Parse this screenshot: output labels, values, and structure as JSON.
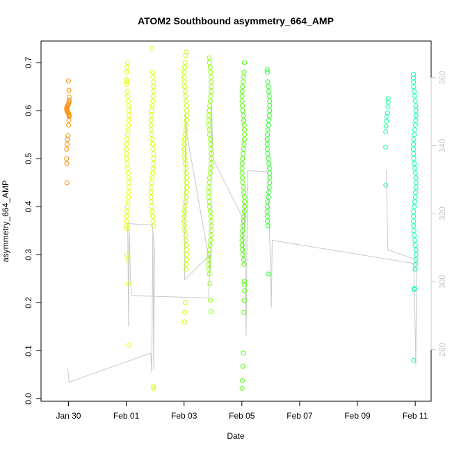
{
  "chart_data": {
    "type": "scatter",
    "title": "ATOM2 Southbound asymmetry_664_AMP",
    "xlabel": "Date",
    "ylabel": "asymmetry_664_AMP",
    "x_unit": "days",
    "x_ticks": [
      {
        "day": 30,
        "label": "Jan 30"
      },
      {
        "day": 32,
        "label": "Feb 01"
      },
      {
        "day": 34,
        "label": "Feb 03"
      },
      {
        "day": 36,
        "label": "Feb 05"
      },
      {
        "day": 38,
        "label": "Feb 07"
      },
      {
        "day": 40,
        "label": "Feb 09"
      },
      {
        "day": 42,
        "label": "Feb 11"
      }
    ],
    "xlim": [
      29.05,
      42.55
    ],
    "ylim": [
      -0.005,
      0.745
    ],
    "y_ticks": [
      0.0,
      0.1,
      0.2,
      0.3,
      0.4,
      0.5,
      0.6,
      0.7
    ],
    "y_tick_labels": [
      "0.0",
      "0.1",
      "0.2",
      "0.3",
      "0.4",
      "0.5",
      "0.6",
      "0.7"
    ],
    "y2_ticks": [
      280,
      300,
      320,
      340,
      360
    ],
    "y2_tick_labels": [
      "280",
      "300",
      "320",
      "340",
      "360"
    ],
    "y2lim": [
      264.8,
      370.8
    ],
    "y2_color": "#c8c8c8",
    "point_style": "open-circle",
    "grid": false,
    "legend": "none",
    "clusters": [
      {
        "x": 29.98,
        "color": "#ff8c00",
        "values": [
          0.662,
          0.642,
          0.628,
          0.622,
          0.618,
          0.615,
          0.612,
          0.61,
          0.608,
          0.606,
          0.604,
          0.602,
          0.6,
          0.598,
          0.596,
          0.594,
          0.592,
          0.59,
          0.588,
          0.58,
          0.57,
          0.548,
          0.54,
          0.53,
          0.52,
          0.5,
          0.49,
          0.45
        ]
      },
      {
        "x": 32.05,
        "color": "#e8ff00",
        "values": [
          0.7,
          0.69,
          0.68,
          0.665,
          0.66,
          0.655,
          0.64,
          0.63,
          0.62,
          0.61,
          0.6,
          0.59,
          0.58,
          0.57,
          0.56,
          0.55,
          0.54,
          0.53,
          0.52,
          0.51,
          0.5,
          0.49,
          0.48,
          0.47,
          0.46,
          0.45,
          0.44,
          0.43,
          0.42,
          0.41,
          0.4,
          0.39,
          0.38,
          0.37,
          0.36,
          0.355,
          0.3,
          0.29,
          0.24,
          0.112
        ]
      },
      {
        "x": 32.9,
        "color": "#d9ff00",
        "values": [
          0.73,
          0.68,
          0.67,
          0.66,
          0.65,
          0.64,
          0.63,
          0.62,
          0.61,
          0.6,
          0.59,
          0.58,
          0.57,
          0.56,
          0.55,
          0.54,
          0.53,
          0.52,
          0.51,
          0.5,
          0.49,
          0.48,
          0.47,
          0.46,
          0.45,
          0.44,
          0.43,
          0.42,
          0.41,
          0.4,
          0.39,
          0.38,
          0.37,
          0.36,
          0.022,
          0.026
        ]
      },
      {
        "x": 34.05,
        "color": "#c4ff00",
        "values": [
          0.722,
          0.715,
          0.7,
          0.69,
          0.68,
          0.67,
          0.66,
          0.65,
          0.64,
          0.63,
          0.62,
          0.61,
          0.6,
          0.59,
          0.58,
          0.57,
          0.56,
          0.55,
          0.54,
          0.53,
          0.52,
          0.51,
          0.5,
          0.49,
          0.48,
          0.47,
          0.46,
          0.45,
          0.44,
          0.43,
          0.42,
          0.41,
          0.4,
          0.39,
          0.38,
          0.37,
          0.36,
          0.35,
          0.34,
          0.33,
          0.32,
          0.31,
          0.3,
          0.29,
          0.28,
          0.27,
          0.2,
          0.18,
          0.16
        ]
      },
      {
        "x": 34.9,
        "color": "#8cff00",
        "values": [
          0.71,
          0.7,
          0.69,
          0.68,
          0.67,
          0.66,
          0.65,
          0.64,
          0.63,
          0.62,
          0.61,
          0.6,
          0.59,
          0.58,
          0.57,
          0.56,
          0.55,
          0.54,
          0.53,
          0.52,
          0.51,
          0.5,
          0.49,
          0.48,
          0.47,
          0.46,
          0.45,
          0.44,
          0.43,
          0.42,
          0.41,
          0.4,
          0.39,
          0.38,
          0.37,
          0.36,
          0.35,
          0.34,
          0.33,
          0.32,
          0.31,
          0.3,
          0.29,
          0.28,
          0.27,
          0.26,
          0.24,
          0.205,
          0.182
        ]
      },
      {
        "x": 36.05,
        "color": "#4cff00",
        "values": [
          0.7,
          0.68,
          0.67,
          0.66,
          0.65,
          0.64,
          0.63,
          0.62,
          0.61,
          0.6,
          0.59,
          0.58,
          0.57,
          0.56,
          0.55,
          0.54,
          0.53,
          0.52,
          0.51,
          0.5,
          0.49,
          0.48,
          0.47,
          0.46,
          0.45,
          0.44,
          0.43,
          0.42,
          0.41,
          0.4,
          0.39,
          0.38,
          0.37,
          0.36,
          0.35,
          0.34,
          0.33,
          0.32,
          0.31,
          0.3,
          0.29,
          0.28,
          0.245,
          0.238,
          0.225,
          0.205,
          0.18,
          0.095,
          0.068,
          0.038,
          0.022
        ]
      },
      {
        "x": 36.92,
        "color": "#26ff20",
        "values": [
          0.685,
          0.68,
          0.66,
          0.65,
          0.64,
          0.63,
          0.62,
          0.61,
          0.6,
          0.59,
          0.58,
          0.57,
          0.56,
          0.55,
          0.54,
          0.53,
          0.52,
          0.51,
          0.5,
          0.49,
          0.48,
          0.47,
          0.46,
          0.45,
          0.44,
          0.43,
          0.42,
          0.41,
          0.4,
          0.39,
          0.38,
          0.37,
          0.36,
          0.26
        ]
      },
      {
        "x": 41.02,
        "color": "#1affa0",
        "values": [
          0.625,
          0.618,
          0.608,
          0.595,
          0.588,
          0.578,
          0.568,
          0.556,
          0.524,
          0.445
        ]
      },
      {
        "x": 41.98,
        "color": "#00ffaa",
        "values": [
          0.675,
          0.668,
          0.66,
          0.65,
          0.64,
          0.63,
          0.62,
          0.61,
          0.6,
          0.59,
          0.58,
          0.57,
          0.56,
          0.55,
          0.54,
          0.53,
          0.52,
          0.51,
          0.5,
          0.49,
          0.48,
          0.47,
          0.46,
          0.45,
          0.44,
          0.43,
          0.42,
          0.41,
          0.4,
          0.39,
          0.38,
          0.37,
          0.36,
          0.35,
          0.34,
          0.33,
          0.32,
          0.31,
          0.3,
          0.29,
          0.28,
          0.27,
          0.23,
          0.228,
          0.08
        ]
      }
    ],
    "secondary_line": {
      "color": "#c8c8c8",
      "points": [
        [
          29.98,
          0.062
        ],
        [
          30.02,
          0.035
        ],
        [
          32.85,
          0.095
        ],
        [
          32.88,
          0.055
        ],
        [
          32.92,
          0.35
        ],
        [
          32.95,
          0.06
        ],
        [
          32.98,
          0.31
        ],
        [
          32.9,
          0.362
        ],
        [
          32.05,
          0.365
        ],
        [
          32.08,
          0.15
        ],
        [
          32.1,
          0.36
        ],
        [
          32.14,
          0.26
        ],
        [
          32.18,
          0.215
        ],
        [
          34.85,
          0.21
        ],
        [
          34.9,
          0.3
        ],
        [
          34.02,
          0.248
        ],
        [
          34.05,
          0.595
        ],
        [
          34.1,
          0.55
        ],
        [
          34.92,
          0.27
        ],
        [
          34.95,
          0.62
        ],
        [
          35.0,
          0.5
        ],
        [
          36.0,
          0.38
        ],
        [
          36.05,
          0.29
        ],
        [
          36.1,
          0.41
        ],
        [
          36.15,
          0.13
        ],
        [
          36.2,
          0.475
        ],
        [
          36.9,
          0.473
        ],
        [
          36.95,
          0.36
        ],
        [
          36.98,
          0.3
        ],
        [
          37.02,
          0.19
        ],
        [
          37.05,
          0.33
        ],
        [
          41.95,
          0.282
        ],
        [
          41.98,
          0.2
        ],
        [
          42.02,
          0.07
        ],
        [
          42.05,
          0.29
        ],
        [
          41.05,
          0.31
        ],
        [
          41.0,
          0.475
        ]
      ]
    }
  }
}
